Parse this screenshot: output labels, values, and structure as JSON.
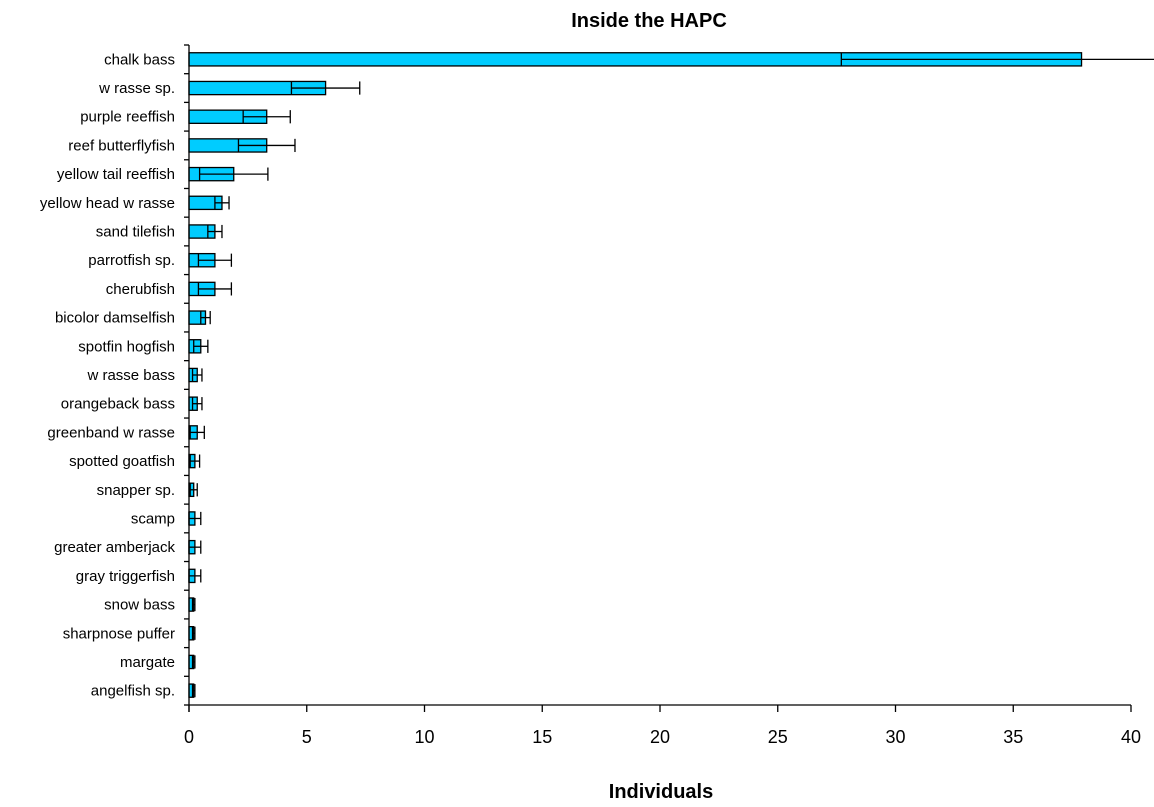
{
  "chart_data": {
    "type": "bar",
    "orientation": "horizontal",
    "title": "Inside the HAPC",
    "xlabel": "Individuals",
    "ylabel": "",
    "xlim": [
      0,
      40
    ],
    "xticks": [
      0,
      5,
      10,
      15,
      20,
      25,
      30,
      35,
      40
    ],
    "grid": false,
    "legend": "none",
    "bar_color": "#00ccff",
    "categories": [
      "chalk bass",
      "w rasse sp.",
      "purple reeffish",
      "reef butterflyfish",
      "yellow tail reeffish",
      "yellow head w rasse",
      "sand tilefish",
      "parrotfish sp.",
      "cherubfish",
      "bicolor damselfish",
      "spotfin hogfish",
      "w rasse bass",
      "orangeback bass",
      "greenband w rasse",
      "spotted goatfish",
      "snapper sp.",
      "scamp",
      "greater amberjack",
      "gray triggerfish",
      "snow bass",
      "sharpnose puffer",
      "margate",
      "angelfish sp."
    ],
    "values": [
      37.9,
      5.8,
      3.3,
      3.3,
      1.9,
      1.4,
      1.1,
      1.1,
      1.1,
      0.7,
      0.5,
      0.35,
      0.35,
      0.35,
      0.25,
      0.2,
      0.25,
      0.25,
      0.25,
      0.2,
      0.2,
      0.2,
      0.2
    ],
    "error": [
      10.2,
      1.45,
      1.0,
      1.2,
      1.45,
      0.3,
      0.3,
      0.7,
      0.7,
      0.2,
      0.3,
      0.2,
      0.2,
      0.3,
      0.2,
      0.15,
      0.25,
      0.25,
      0.25,
      0.05,
      0.05,
      0.05,
      0.05
    ]
  }
}
